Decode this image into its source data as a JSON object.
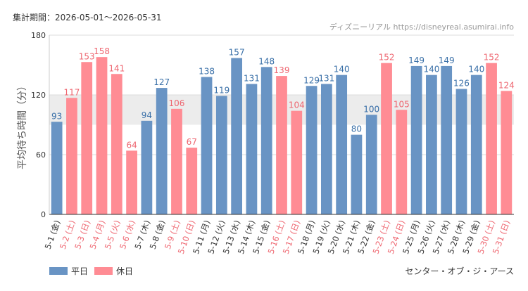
{
  "header": {
    "period_label": "集計期間：2026-05-01〜2026-05-31",
    "credit": "ディズニーリアル https://disneyreal.asumirai.info"
  },
  "footer": {
    "attraction": "センター・オブ・ジ・アース"
  },
  "colors": {
    "weekday": "#6994c4",
    "holiday": "#ff8c94",
    "weekday_label": "#3a70a8",
    "holiday_label": "#ee6670",
    "highlight_band": "#ececec",
    "grid": "#dddddd",
    "axis": "#333333"
  },
  "chart_data": {
    "type": "bar",
    "ylabel": "平均待ち時間（分）",
    "ylim": [
      0,
      180
    ],
    "yticks": [
      0,
      60,
      120,
      180
    ],
    "highlight_band": [
      90,
      120
    ],
    "grid": true,
    "legend_position": "bottom-left",
    "series": [
      {
        "name": "平日",
        "key": "weekday"
      },
      {
        "name": "休日",
        "key": "holiday"
      }
    ],
    "categories": [
      "5-1 (金)",
      "5-2 (土)",
      "5-3 (日)",
      "5-4 (月)",
      "5-5 (火)",
      "5-6 (水)",
      "5-7 (木)",
      "5-8 (金)",
      "5-9 (土)",
      "5-10 (日)",
      "5-11 (月)",
      "5-12 (火)",
      "5-13 (水)",
      "5-14 (木)",
      "5-15 (金)",
      "5-16 (土)",
      "5-17 (日)",
      "5-18 (月)",
      "5-19 (火)",
      "5-20 (水)",
      "5-21 (木)",
      "5-22 (金)",
      "5-23 (土)",
      "5-24 (日)",
      "5-25 (月)",
      "5-26 (火)",
      "5-27 (水)",
      "5-28 (木)",
      "5-29 (金)",
      "5-30 (土)",
      "5-31 (日)"
    ],
    "values": [
      93,
      117,
      153,
      158,
      141,
      64,
      94,
      127,
      106,
      67,
      138,
      119,
      157,
      131,
      148,
      139,
      104,
      129,
      131,
      140,
      80,
      100,
      152,
      105,
      149,
      140,
      149,
      126,
      140,
      152,
      124
    ],
    "day_type": [
      "weekday",
      "holiday",
      "holiday",
      "holiday",
      "holiday",
      "holiday",
      "weekday",
      "weekday",
      "holiday",
      "holiday",
      "weekday",
      "weekday",
      "weekday",
      "weekday",
      "weekday",
      "holiday",
      "holiday",
      "weekday",
      "weekday",
      "weekday",
      "weekday",
      "weekday",
      "holiday",
      "holiday",
      "weekday",
      "weekday",
      "weekday",
      "weekday",
      "weekday",
      "holiday",
      "holiday"
    ]
  }
}
